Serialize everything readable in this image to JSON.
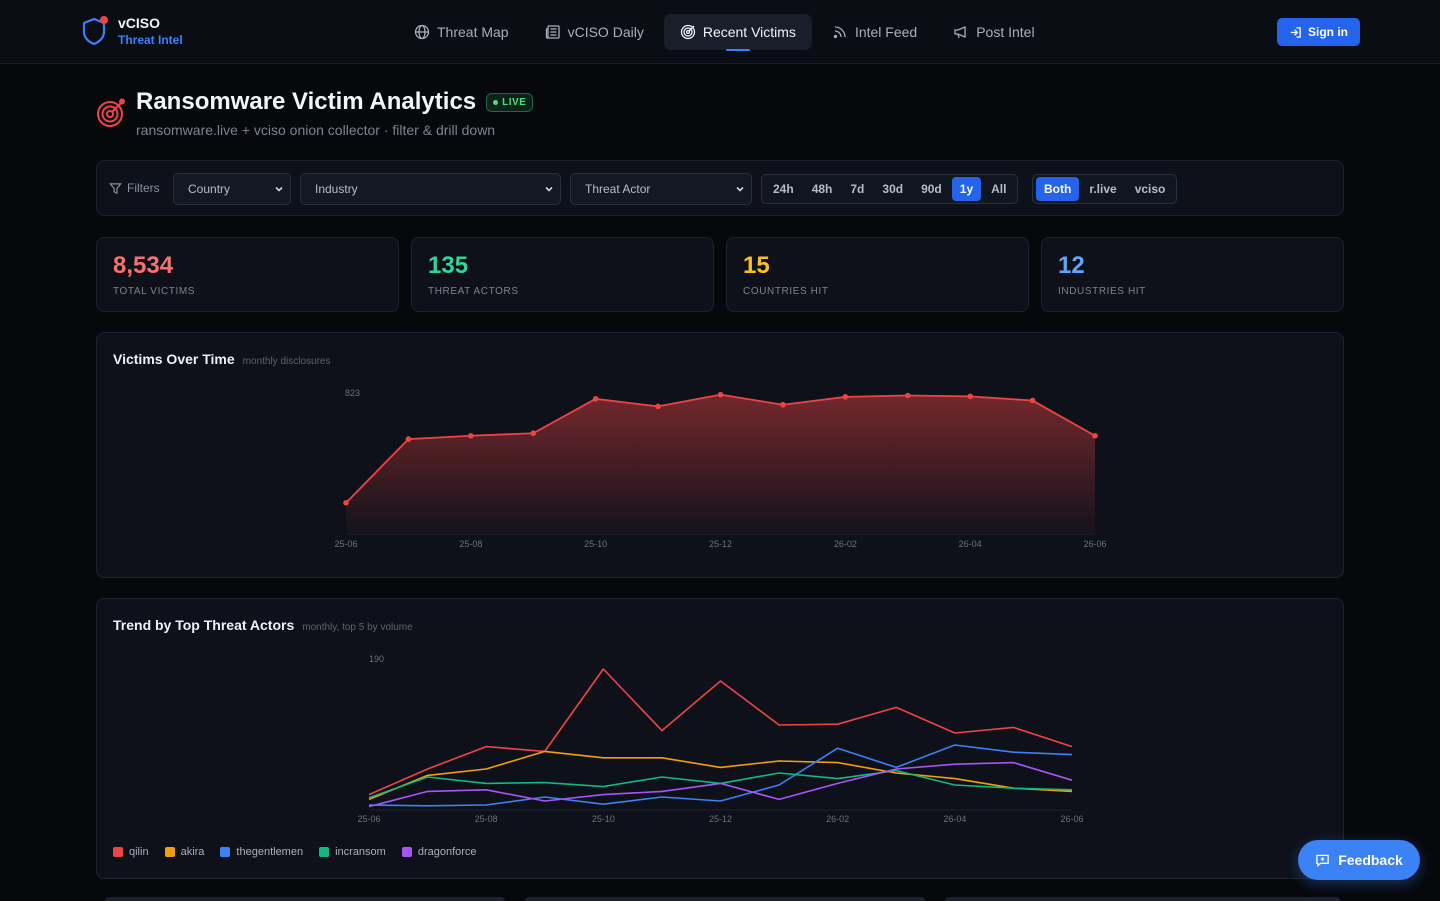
{
  "brand": {
    "name": "vCISO",
    "subtitle": "Threat Intel",
    "icon": "shield-icon"
  },
  "nav": [
    {
      "label": "Threat Map",
      "icon": "globe-icon",
      "active": false
    },
    {
      "label": "vCISO Daily",
      "icon": "newspaper-icon",
      "active": false
    },
    {
      "label": "Recent Victims",
      "icon": "target-icon",
      "active": true
    },
    {
      "label": "Intel Feed",
      "icon": "rss-icon",
      "active": false
    },
    {
      "label": "Post Intel",
      "icon": "megaphone-icon",
      "active": false
    }
  ],
  "signin_label": "Sign in",
  "header": {
    "title": "Ransomware Victim Analytics",
    "badge": "LIVE",
    "subtitle": "ransomware.live + vciso onion collector · filter & drill down"
  },
  "filters": {
    "label": "Filters",
    "country": "Country",
    "industry": "Industry",
    "actor": "Threat Actor",
    "ranges": [
      "24h",
      "48h",
      "7d",
      "30d",
      "90d",
      "1y",
      "All"
    ],
    "range_selected": "1y",
    "sources": [
      "Both",
      "r.live",
      "vciso"
    ],
    "source_selected": "Both"
  },
  "stats": [
    {
      "value": "8,534",
      "label": "TOTAL VICTIMS",
      "color": "#f87171"
    },
    {
      "value": "135",
      "label": "THREAT ACTORS",
      "color": "#34d399"
    },
    {
      "value": "15",
      "label": "COUNTRIES HIT",
      "color": "#fbbf24"
    },
    {
      "value": "12",
      "label": "INDUSTRIES HIT",
      "color": "#60a5fa"
    }
  ],
  "chart_data": [
    {
      "type": "area",
      "title": "Victims Over Time",
      "subtitle": "monthly disclosures",
      "x": [
        "25-06",
        "25-07",
        "25-08",
        "25-09",
        "25-10",
        "25-11",
        "25-12",
        "26-01",
        "26-02",
        "26-03",
        "26-04",
        "26-05",
        "26-06"
      ],
      "x_tick_labels": [
        "25-06",
        "25-08",
        "25-10",
        "25-12",
        "26-02",
        "26-04",
        "26-06"
      ],
      "y_max_label": "823",
      "ylim": [
        0,
        823
      ],
      "color": "#ef4444",
      "values": [
        180,
        560,
        580,
        595,
        800,
        755,
        825,
        765,
        812,
        820,
        815,
        790,
        580
      ]
    },
    {
      "type": "line",
      "title": "Trend by Top Threat Actors",
      "subtitle": "monthly, top 5 by volume",
      "x": [
        "25-06",
        "25-07",
        "25-08",
        "25-09",
        "25-10",
        "25-11",
        "25-12",
        "26-01",
        "26-02",
        "26-03",
        "26-04",
        "26-05",
        "26-06"
      ],
      "x_tick_labels": [
        "25-06",
        "25-08",
        "25-10",
        "25-12",
        "26-02",
        "26-04",
        "26-06"
      ],
      "y_max_label": "190",
      "ylim": [
        0,
        190
      ],
      "series": [
        {
          "name": "qilin",
          "color": "#ef4444",
          "values": [
            18,
            50,
            78,
            72,
            175,
            98,
            160,
            105,
            106,
            127,
            95,
            102,
            78
          ]
        },
        {
          "name": "akira",
          "color": "#f59e0b",
          "values": [
            12,
            42,
            50,
            72,
            64,
            64,
            52,
            60,
            58,
            45,
            38,
            26,
            22
          ]
        },
        {
          "name": "thegentlemen",
          "color": "#3b82f6",
          "values": [
            5,
            4,
            5,
            15,
            6,
            15,
            10,
            30,
            76,
            52,
            80,
            71,
            68
          ]
        },
        {
          "name": "incransom",
          "color": "#10b981",
          "values": [
            14,
            40,
            32,
            33,
            28,
            40,
            32,
            45,
            38,
            48,
            30,
            26,
            24
          ]
        },
        {
          "name": "dragonforce",
          "color": "#a855f7",
          "values": [
            3,
            22,
            24,
            10,
            18,
            22,
            32,
            12,
            32,
            50,
            56,
            58,
            36
          ]
        }
      ]
    }
  ],
  "feedback_label": "Feedback"
}
